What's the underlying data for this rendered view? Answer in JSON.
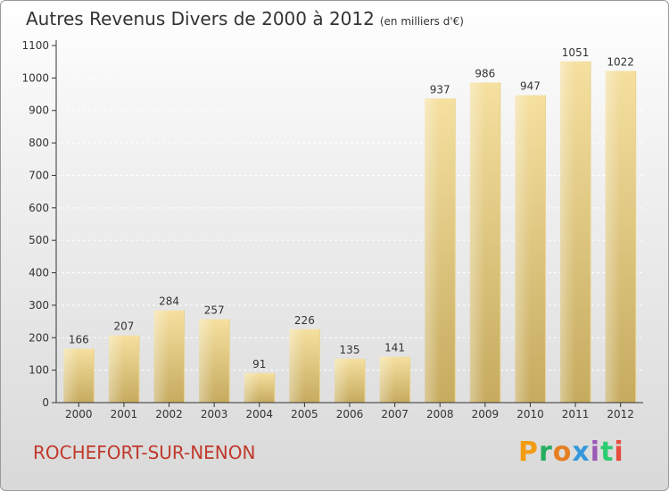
{
  "header": {
    "title": "Autres Revenus Divers de 2000 à 2012",
    "subtitle": "(en milliers d'€)"
  },
  "footer": {
    "commune": "ROCHEFORT-SUR-NENON",
    "brand": "Proxiti",
    "brand_colors": [
      "#f39c12",
      "#27ae60",
      "#e67e22",
      "#3498db",
      "#9b59b6",
      "#2ecc71",
      "#e74c3c"
    ]
  },
  "colors": {
    "bar_light": "#f3dd9a",
    "bar_dark": "#c8ad62",
    "axis": "#333333",
    "grid": "#ffffff",
    "commune": "#c0392b"
  },
  "chart_data": {
    "type": "bar",
    "title": "Autres Revenus Divers de 2000 à 2012",
    "subtitle": "(en milliers d'€)",
    "categories": [
      "2000",
      "2001",
      "2002",
      "2003",
      "2004",
      "2005",
      "2006",
      "2007",
      "2008",
      "2009",
      "2010",
      "2011",
      "2012"
    ],
    "values": [
      166,
      207,
      284,
      257,
      91,
      226,
      135,
      141,
      937,
      986,
      947,
      1051,
      1022
    ],
    "ylim": [
      0,
      1100
    ],
    "yticks": [
      0,
      100,
      200,
      300,
      400,
      500,
      600,
      700,
      800,
      900,
      1000,
      1100
    ],
    "grid": "horizontal dashed",
    "legend": "none"
  }
}
